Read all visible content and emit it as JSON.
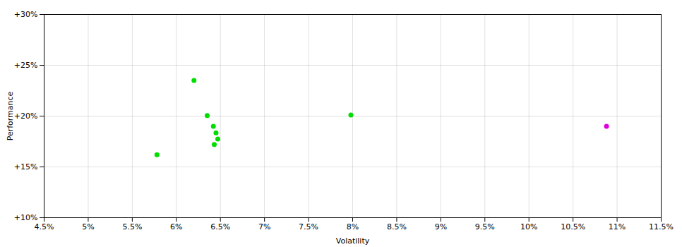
{
  "chart_data": {
    "type": "scatter",
    "xlabel": "Volatility",
    "ylabel": "Performance",
    "series": [
      {
        "color": "#00dd00",
        "x": [
          6.2,
          6.35,
          6.42,
          6.45,
          6.47,
          6.43,
          5.78,
          7.98
        ],
        "values": [
          23.5,
          20.05,
          19.0,
          18.35,
          17.75,
          17.2,
          16.2,
          20.1
        ]
      },
      {
        "color": "#dd00dd",
        "x": [
          10.88
        ],
        "values": [
          19.0
        ]
      }
    ],
    "xlim": [
      4.5,
      11.5
    ],
    "xticks": [
      {
        "value": 4.5,
        "label": "4.5%"
      },
      {
        "value": 5.0,
        "label": "5%"
      },
      {
        "value": 5.5,
        "label": "5.5%"
      },
      {
        "value": 6.0,
        "label": "6%"
      },
      {
        "value": 6.5,
        "label": "6.5%"
      },
      {
        "value": 7.0,
        "label": "7%"
      },
      {
        "value": 7.5,
        "label": "7.5%"
      },
      {
        "value": 8.0,
        "label": "8%"
      },
      {
        "value": 8.5,
        "label": "8.5%"
      },
      {
        "value": 9.0,
        "label": "9%"
      },
      {
        "value": 9.5,
        "label": "9.5%"
      },
      {
        "value": 10.0,
        "label": "10%"
      },
      {
        "value": 10.5,
        "label": "10.5%"
      },
      {
        "value": 11.0,
        "label": "11%"
      },
      {
        "value": 11.5,
        "label": "11.5%"
      }
    ],
    "ylim": [
      10,
      30
    ],
    "yticks": [
      {
        "value": 10,
        "label": "+10%"
      },
      {
        "value": 15,
        "label": "+15%"
      },
      {
        "value": 20,
        "label": "+20%"
      },
      {
        "value": 25,
        "label": "+25%"
      },
      {
        "value": 30,
        "label": "+30%"
      }
    ],
    "grid": true
  }
}
